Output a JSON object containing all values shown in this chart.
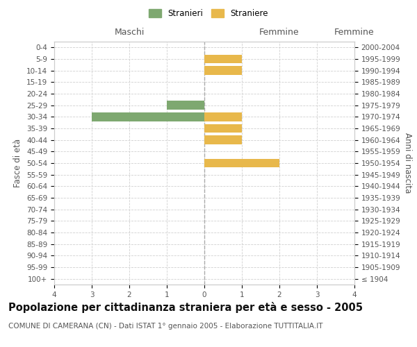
{
  "age_groups": [
    "100+",
    "95-99",
    "90-94",
    "85-89",
    "80-84",
    "75-79",
    "70-74",
    "65-69",
    "60-64",
    "55-59",
    "50-54",
    "45-49",
    "40-44",
    "35-39",
    "30-34",
    "25-29",
    "20-24",
    "15-19",
    "10-14",
    "5-9",
    "0-4"
  ],
  "birth_years": [
    "≤ 1904",
    "1905-1909",
    "1910-1914",
    "1915-1919",
    "1920-1924",
    "1925-1929",
    "1930-1934",
    "1935-1939",
    "1940-1944",
    "1945-1949",
    "1950-1954",
    "1955-1959",
    "1960-1964",
    "1965-1969",
    "1970-1974",
    "1975-1979",
    "1980-1984",
    "1985-1989",
    "1990-1994",
    "1995-1999",
    "2000-2004"
  ],
  "maschi": [
    0,
    0,
    0,
    0,
    0,
    0,
    0,
    0,
    0,
    0,
    0,
    0,
    0,
    0,
    3,
    1,
    0,
    0,
    0,
    0,
    0
  ],
  "femmine": [
    0,
    0,
    0,
    0,
    0,
    0,
    0,
    0,
    0,
    0,
    2,
    0,
    1,
    1,
    1,
    0,
    0,
    0,
    1,
    1,
    0
  ],
  "color_maschi": "#7ea870",
  "color_femmine": "#e8b84b",
  "xlim": 4,
  "xlabel_left": "Maschi",
  "xlabel_right": "Femmine",
  "ylabel_left": "Fasce di età",
  "ylabel_right": "Anni di nascita",
  "legend_maschi": "Stranieri",
  "legend_femmine": "Straniere",
  "title": "Popolazione per cittadinanza straniera per età e sesso - 2005",
  "subtitle": "COMUNE DI CAMERANA (CN) - Dati ISTAT 1° gennaio 2005 - Elaborazione TUTTITALIA.IT",
  "title_fontsize": 10.5,
  "subtitle_fontsize": 7.5,
  "tick_fontsize": 7.5,
  "label_fontsize": 8.5,
  "bar_height": 0.75,
  "background_color": "#ffffff",
  "grid_color": "#d0d0d0",
  "zeroline_color": "#aaaaaa",
  "spine_color": "#cccccc"
}
